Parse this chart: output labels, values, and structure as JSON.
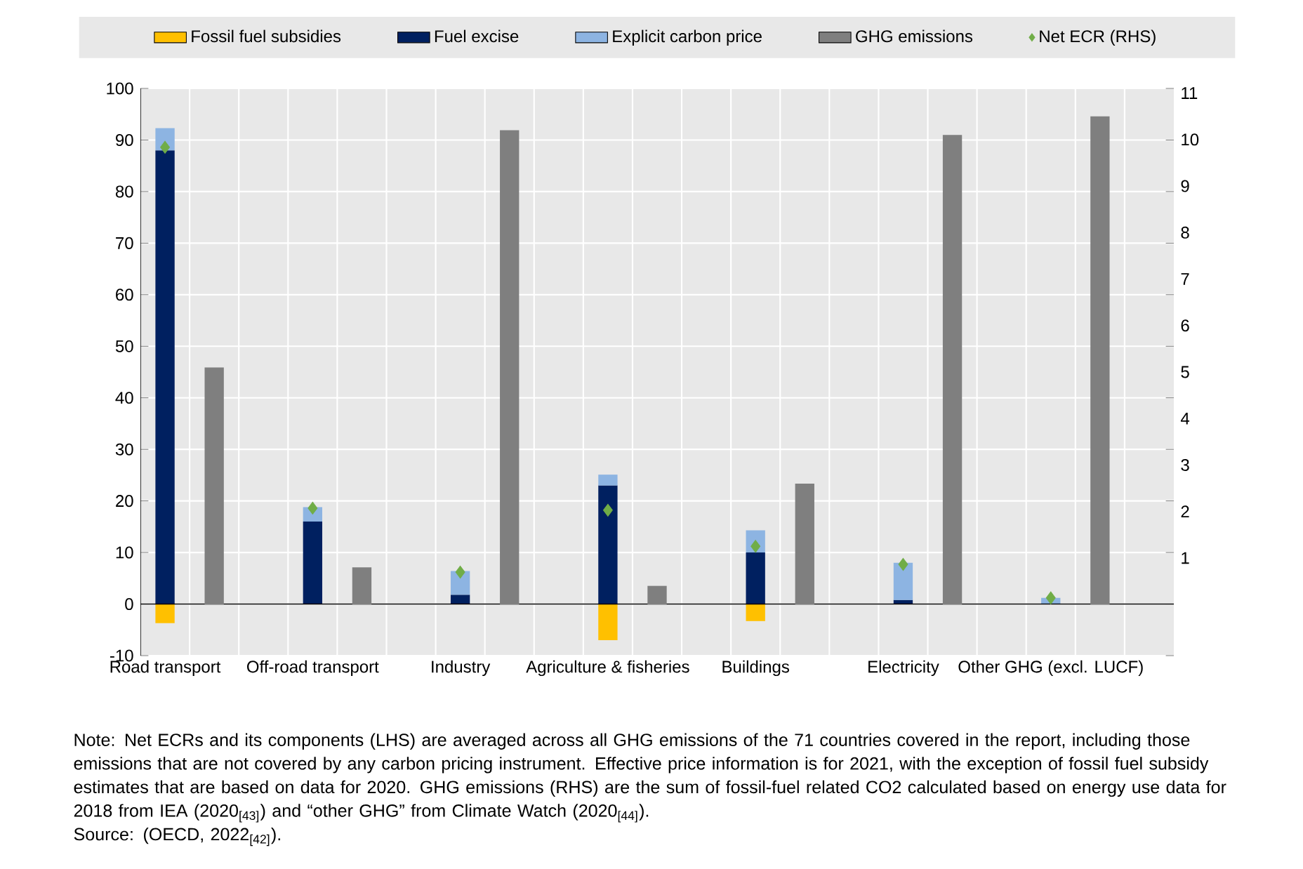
{
  "chart_data": {
    "type": "bar",
    "stacked": true,
    "categories": [
      "Road transport",
      "Off-road transport",
      "Industry",
      "Agriculture & fisheries",
      "Buildings",
      "Electricity",
      "Other GHG (excl. LUCF)"
    ],
    "series": [
      {
        "name": "Fossil fuel subsidies",
        "color": "#ffc000",
        "values": [
          -3.7,
          null,
          null,
          -7,
          -3.3,
          null,
          null
        ]
      },
      {
        "name": "Fuel excise",
        "color": "#002060",
        "values": [
          88,
          16,
          1.8,
          23,
          10,
          0.8,
          null
        ]
      },
      {
        "name": "Explicit carbon price",
        "color": "#8db4e2",
        "values": [
          4.3,
          2.8,
          4.6,
          2.1,
          4.3,
          7.2,
          1.2
        ]
      },
      {
        "name": "GHG emissions",
        "color": "#7f7f7f",
        "axis": "y2",
        "values": [
          5.1,
          0.8,
          10.2,
          0.4,
          2.6,
          10.1,
          10.5
        ]
      },
      {
        "name": "Net ECR (RHS)",
        "type": "scatter",
        "marker": "diamond",
        "color": "#70ad47",
        "values": [
          88.6,
          18.6,
          6.2,
          18.2,
          11.2,
          7.7,
          1.2
        ]
      }
    ],
    "ylim": [
      -10,
      100
    ],
    "yticks": [
      -10,
      0,
      10,
      20,
      30,
      40,
      50,
      60,
      70,
      80,
      90,
      100
    ],
    "y2lim": [
      -1.1,
      11.1
    ],
    "y2ticks": [
      1,
      2,
      3,
      4,
      5,
      6,
      7,
      8,
      9,
      10,
      11
    ],
    "grid": true,
    "legend": "top",
    "annotations": [
      "Note: Net ECRs and its components (LHS) are averaged across all GHG emissions of the 71 countries covered in the report, including those emissions that are not covered by any carbon pricing instrument. Effective price information is for 2021, with the exception of fossil fuel subsidy estimates that are based on data for 2020. GHG emissions (RHS) are the sum of fossil-fuel related CO2 calculated based on energy use data for 2018 from IEA (2020$_{[43]}$) and “other GHG” from Climate Watch (2020$_{[44]}$).",
      "Source: (OECD, 2022$_{[42]}$)."
    ]
  }
}
